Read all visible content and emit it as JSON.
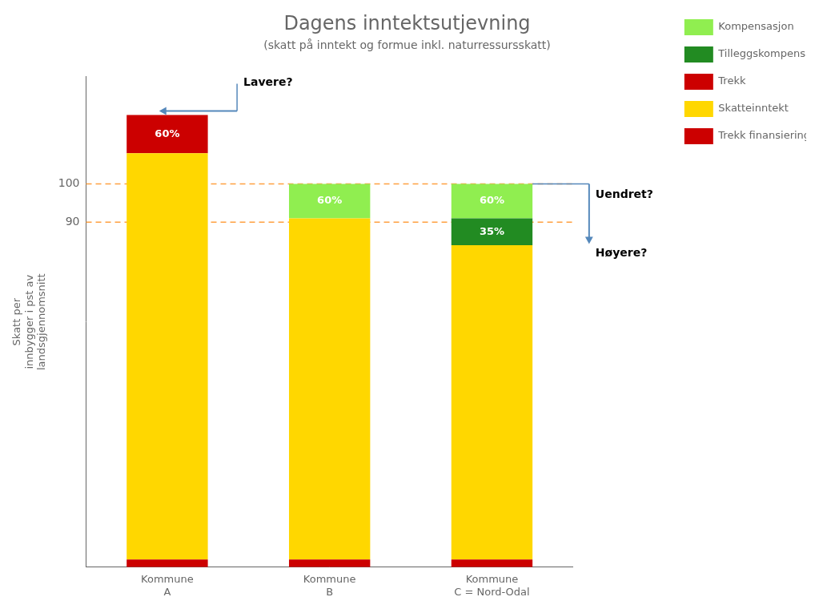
{
  "chart_data": {
    "type": "bar",
    "title": "Dagens inntektsutjevning",
    "subtitle": "(skatt på inntekt og formue inkl. naturressursskatt)",
    "ylabel": "Skatt per\ninnbygger i pst av\nlandsgjennomsnitt",
    "categories": [
      "Kommune\nA",
      "Kommune\nB",
      "Kommune\nC = Nord-Odal"
    ],
    "series": [
      {
        "name": "Trekk finansiering tilleggskomp.",
        "color": "#CC0000",
        "values": [
          2,
          2,
          2
        ]
      },
      {
        "name": "Skatteinntekt",
        "color": "#FFD700",
        "values": [
          106,
          89,
          82
        ]
      },
      {
        "name": "Trekk",
        "color": "#CC0000",
        "values": [
          10,
          0,
          0
        ]
      },
      {
        "name": "Tilleggskompensasjon",
        "color": "#228B22",
        "values": [
          0,
          0,
          7
        ]
      },
      {
        "name": "Kompensasjon",
        "color": "#90EE50",
        "values": [
          0,
          9,
          9
        ]
      }
    ],
    "stacked": true,
    "ylim": [
      0,
      128
    ],
    "yticks": [
      90,
      100
    ],
    "grid": false,
    "legend": "upper right",
    "hlines": [
      {
        "value": 100,
        "color": "#FFA040",
        "line_style": "dashed"
      },
      {
        "value": 90,
        "color": "#FFA040",
        "line_style": "dashed"
      }
    ],
    "bar_labels": [
      {
        "text": "60%",
        "category": "Kommune\nA",
        "series": "Trekk"
      },
      {
        "text": "60%",
        "category": "Kommune\nB",
        "series": "Kompensasjon"
      },
      {
        "text": "35%",
        "category": "Kommune\nC = Nord-Odal",
        "series": "Tilleggskompensasjon"
      },
      {
        "text": "60%",
        "category": "Kommune\nC = Nord-Odal",
        "series": "Kompensasjon"
      }
    ],
    "annotations": [
      {
        "text": "Lavere?",
        "category": "Kommune\nA",
        "arrow": "left",
        "color": "#5588BB"
      },
      {
        "text": "Uendret?",
        "category": "Kommune\nC = Nord-Odal",
        "arrow": "down",
        "color": "#5588BB"
      },
      {
        "text": "Høyere?",
        "category": "Kommune\nC = Nord-Odal"
      }
    ]
  }
}
